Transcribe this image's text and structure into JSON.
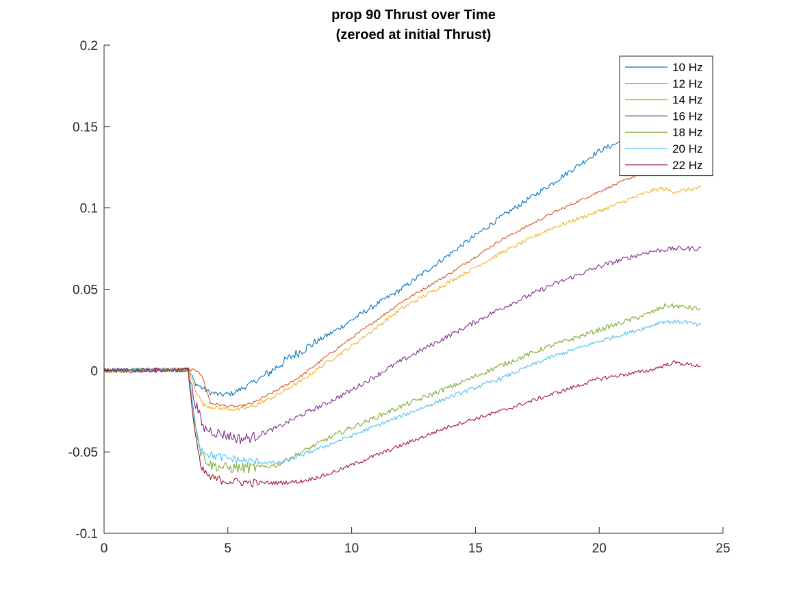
{
  "chart_data": {
    "type": "line",
    "title": "prop 90 Thrust over Time",
    "subtitle": "(zeroed at initial Thrust)",
    "xlabel": "",
    "ylabel": "",
    "xlim": [
      0,
      25
    ],
    "ylim": [
      -0.1,
      0.2
    ],
    "xticks": [
      0,
      5,
      10,
      15,
      20,
      25
    ],
    "xtick_labels": [
      "0",
      "5",
      "10",
      "15",
      "20",
      "25"
    ],
    "yticks": [
      -0.1,
      -0.05,
      0,
      0.05,
      0.1,
      0.15,
      0.2
    ],
    "ytick_labels": [
      "-0.1",
      "-0.05",
      "0",
      "0.05",
      "0.1",
      "0.15",
      "0.2"
    ],
    "grid": false,
    "legend_position": "top-right",
    "series": [
      {
        "name": "10 Hz",
        "color": "#0072BD",
        "noise": 0.0016,
        "x": [
          0,
          3.4,
          3.7,
          4.2,
          4.7,
          5.2,
          5.7,
          6.5,
          7.5,
          8.5,
          9.5,
          10.5,
          12,
          14,
          16,
          18,
          20,
          21.2,
          22,
          23,
          24
        ],
        "y": [
          0,
          0.0005,
          -0.008,
          -0.013,
          -0.015,
          -0.014,
          -0.01,
          -0.003,
          0.008,
          0.017,
          0.026,
          0.036,
          0.05,
          0.072,
          0.094,
          0.114,
          0.135,
          0.143,
          0.148,
          0.152,
          0.154
        ]
      },
      {
        "name": "12 Hz",
        "color": "#D95319",
        "noise": 0.0008,
        "x": [
          0,
          3.4,
          3.8,
          4.0,
          4.3,
          5.0,
          5.5,
          6.0,
          7.0,
          8.0,
          9.0,
          10.0,
          12.0,
          14.0,
          16.0,
          18.0,
          20.0,
          21.5,
          22.5,
          24.0
        ],
        "y": [
          0,
          0.0005,
          0,
          -0.005,
          -0.02,
          -0.022,
          -0.022,
          -0.02,
          -0.012,
          -0.003,
          0.009,
          0.02,
          0.042,
          0.06,
          0.08,
          0.096,
          0.11,
          0.12,
          0.128,
          0.135
        ]
      },
      {
        "name": "14 Hz",
        "color": "#EDB120",
        "noise": 0.0012,
        "x": [
          0,
          3.4,
          3.7,
          4.0,
          4.5,
          5.5,
          6.0,
          7.0,
          8.0,
          9.0,
          10.0,
          12.0,
          14.0,
          16.0,
          18.0,
          20.0,
          21.0,
          22.0,
          22.5,
          23.0,
          24.0
        ],
        "y": [
          0,
          0.0005,
          -0.012,
          -0.021,
          -0.023,
          -0.024,
          -0.022,
          -0.015,
          -0.006,
          0.005,
          0.015,
          0.038,
          0.055,
          0.072,
          0.087,
          0.098,
          0.104,
          0.11,
          0.112,
          0.11,
          0.112
        ]
      },
      {
        "name": "16 Hz",
        "color": "#7E2F8E",
        "noise": 0.0015,
        "x": [
          0,
          3.4,
          3.6,
          4.0,
          4.5,
          5.0,
          5.5,
          6.0,
          7.0,
          8.0,
          9.0,
          10.0,
          12.0,
          14.0,
          16.0,
          18.0,
          20.0,
          22.0,
          23.0,
          24.0
        ],
        "y": [
          0,
          0.0005,
          -0.015,
          -0.035,
          -0.038,
          -0.04,
          -0.042,
          -0.041,
          -0.035,
          -0.027,
          -0.02,
          -0.012,
          0.006,
          0.022,
          0.038,
          0.052,
          0.064,
          0.073,
          0.075,
          0.075
        ]
      },
      {
        "name": "18 Hz",
        "color": "#77AC30",
        "noise": 0.0015,
        "x": [
          0,
          3.4,
          3.6,
          3.9,
          4.3,
          5.0,
          6.0,
          7.0,
          8.0,
          9.0,
          10.0,
          12.0,
          14.0,
          16.0,
          18.0,
          20.0,
          22.0,
          22.7,
          23.5,
          24.0
        ],
        "y": [
          0,
          0.0005,
          -0.025,
          -0.05,
          -0.058,
          -0.06,
          -0.06,
          -0.058,
          -0.05,
          -0.042,
          -0.035,
          -0.022,
          -0.01,
          0.003,
          0.015,
          0.025,
          0.035,
          0.04,
          0.039,
          0.038
        ]
      },
      {
        "name": "20 Hz",
        "color": "#4DBEEE",
        "noise": 0.0012,
        "x": [
          0,
          3.4,
          3.6,
          3.9,
          4.3,
          5.0,
          6.0,
          7.0,
          8.0,
          9.0,
          10.0,
          12.0,
          14.0,
          16.0,
          18.0,
          20.0,
          22.0,
          22.5,
          23.5,
          24.0
        ],
        "y": [
          0,
          0.0005,
          -0.025,
          -0.048,
          -0.052,
          -0.054,
          -0.056,
          -0.057,
          -0.052,
          -0.046,
          -0.04,
          -0.028,
          -0.016,
          -0.005,
          0.008,
          0.018,
          0.027,
          0.03,
          0.03,
          0.028
        ]
      },
      {
        "name": "22 Hz",
        "color": "#A2142F",
        "noise": 0.0012,
        "x": [
          0,
          3.4,
          3.6,
          3.9,
          4.3,
          5.0,
          6.0,
          7.0,
          8.0,
          9.0,
          10.0,
          12.0,
          14.0,
          16.0,
          18.0,
          20.0,
          22.0,
          23.0,
          24.0
        ],
        "y": [
          0,
          0.0005,
          -0.03,
          -0.06,
          -0.066,
          -0.068,
          -0.069,
          -0.069,
          -0.068,
          -0.064,
          -0.058,
          -0.046,
          -0.034,
          -0.025,
          -0.015,
          -0.005,
          0.0,
          0.005,
          0.003
        ]
      }
    ]
  }
}
